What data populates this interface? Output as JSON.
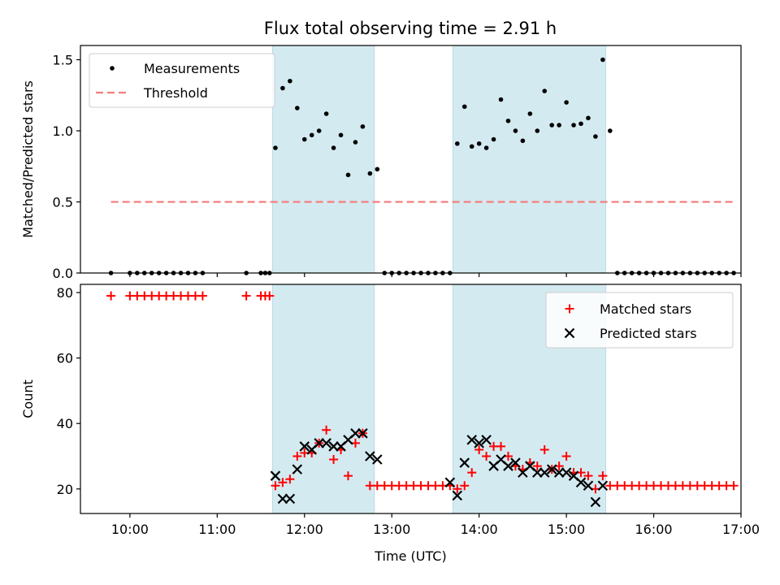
{
  "figure": {
    "title": "Flux total observing time = 2.91 h"
  },
  "chart_data": [
    {
      "type": "scatter",
      "ylabel": "Matched/Predicted stars",
      "xlabel": "",
      "xlim": [
        "09:26",
        "17:00"
      ],
      "ylim": [
        0,
        1.6
      ],
      "yticks": [
        0.0,
        0.5,
        1.0,
        1.5
      ],
      "grid": false,
      "legend_position": "top-left",
      "shaded_intervals": [
        [
          "11:38",
          "12:48"
        ],
        [
          "13:42",
          "15:27"
        ]
      ],
      "series": [
        {
          "name": "Measurements",
          "style": "dot",
          "color": "#000000",
          "points": [
            [
              "09:47",
              0.0
            ],
            [
              "10:00",
              0.0
            ],
            [
              "10:05",
              0.0
            ],
            [
              "10:10",
              0.0
            ],
            [
              "10:15",
              0.0
            ],
            [
              "10:20",
              0.0
            ],
            [
              "10:25",
              0.0
            ],
            [
              "10:30",
              0.0
            ],
            [
              "10:35",
              0.0
            ],
            [
              "10:40",
              0.0
            ],
            [
              "10:45",
              0.0
            ],
            [
              "10:50",
              0.0
            ],
            [
              "11:20",
              0.0
            ],
            [
              "11:30",
              0.0
            ],
            [
              "11:33",
              0.0
            ],
            [
              "11:36",
              0.0
            ],
            [
              "11:40",
              0.88
            ],
            [
              "11:45",
              1.3
            ],
            [
              "11:50",
              1.35
            ],
            [
              "11:55",
              1.16
            ],
            [
              "12:00",
              0.94
            ],
            [
              "12:05",
              0.97
            ],
            [
              "12:10",
              1.0
            ],
            [
              "12:15",
              1.12
            ],
            [
              "12:20",
              0.88
            ],
            [
              "12:25",
              0.97
            ],
            [
              "12:30",
              0.69
            ],
            [
              "12:35",
              0.92
            ],
            [
              "12:40",
              1.03
            ],
            [
              "12:45",
              0.7
            ],
            [
              "12:50",
              0.73
            ],
            [
              "12:55",
              0.0
            ],
            [
              "13:00",
              0.0
            ],
            [
              "13:05",
              0.0
            ],
            [
              "13:10",
              0.0
            ],
            [
              "13:15",
              0.0
            ],
            [
              "13:20",
              0.0
            ],
            [
              "13:25",
              0.0
            ],
            [
              "13:30",
              0.0
            ],
            [
              "13:35",
              0.0
            ],
            [
              "13:40",
              0.0
            ],
            [
              "13:45",
              0.91
            ],
            [
              "13:50",
              1.17
            ],
            [
              "13:55",
              0.89
            ],
            [
              "14:00",
              0.91
            ],
            [
              "14:05",
              0.88
            ],
            [
              "14:10",
              0.94
            ],
            [
              "14:15",
              1.22
            ],
            [
              "14:20",
              1.07
            ],
            [
              "14:25",
              1.0
            ],
            [
              "14:30",
              0.93
            ],
            [
              "14:35",
              1.12
            ],
            [
              "14:40",
              1.0
            ],
            [
              "14:45",
              1.28
            ],
            [
              "14:50",
              1.04
            ],
            [
              "14:55",
              1.04
            ],
            [
              "15:00",
              1.2
            ],
            [
              "15:05",
              1.04
            ],
            [
              "15:10",
              1.05
            ],
            [
              "15:15",
              1.09
            ],
            [
              "15:20",
              0.96
            ],
            [
              "15:25",
              1.5
            ],
            [
              "15:30",
              1.0
            ],
            [
              "15:35",
              0.0
            ],
            [
              "15:40",
              0.0
            ],
            [
              "15:45",
              0.0
            ],
            [
              "15:50",
              0.0
            ],
            [
              "15:55",
              0.0
            ],
            [
              "16:00",
              0.0
            ],
            [
              "16:05",
              0.0
            ],
            [
              "16:10",
              0.0
            ],
            [
              "16:15",
              0.0
            ],
            [
              "16:20",
              0.0
            ],
            [
              "16:25",
              0.0
            ],
            [
              "16:30",
              0.0
            ],
            [
              "16:35",
              0.0
            ],
            [
              "16:40",
              0.0
            ],
            [
              "16:45",
              0.0
            ],
            [
              "16:50",
              0.0
            ],
            [
              "16:55",
              0.0
            ]
          ]
        },
        {
          "name": "Threshold",
          "style": "dashed-line",
          "color": "#f47e7e",
          "points": [
            [
              "09:47",
              0.5
            ],
            [
              "16:55",
              0.5
            ]
          ]
        }
      ]
    },
    {
      "type": "scatter",
      "ylabel": "Count",
      "xlabel": "Time (UTC)",
      "xlim": [
        "09:26",
        "17:00"
      ],
      "ylim": [
        12.5,
        82.5
      ],
      "yticks": [
        20,
        40,
        60,
        80
      ],
      "xticks": [
        "10:00",
        "11:00",
        "12:00",
        "13:00",
        "14:00",
        "15:00",
        "16:00",
        "17:00"
      ],
      "grid": false,
      "legend_position": "top-right",
      "shaded_intervals": [
        [
          "11:38",
          "12:48"
        ],
        [
          "13:42",
          "15:27"
        ]
      ],
      "series": [
        {
          "name": "Matched stars",
          "marker": "plus",
          "color": "#ff0000",
          "points": [
            [
              "09:47",
              79
            ],
            [
              "10:00",
              79
            ],
            [
              "10:05",
              79
            ],
            [
              "10:10",
              79
            ],
            [
              "10:15",
              79
            ],
            [
              "10:20",
              79
            ],
            [
              "10:25",
              79
            ],
            [
              "10:30",
              79
            ],
            [
              "10:35",
              79
            ],
            [
              "10:40",
              79
            ],
            [
              "10:45",
              79
            ],
            [
              "10:50",
              79
            ],
            [
              "11:20",
              79
            ],
            [
              "11:30",
              79
            ],
            [
              "11:33",
              79
            ],
            [
              "11:36",
              79
            ],
            [
              "11:40",
              21
            ],
            [
              "11:45",
              22
            ],
            [
              "11:50",
              23
            ],
            [
              "11:55",
              30
            ],
            [
              "12:00",
              31
            ],
            [
              "12:05",
              31
            ],
            [
              "12:10",
              34
            ],
            [
              "12:15",
              38
            ],
            [
              "12:20",
              29
            ],
            [
              "12:25",
              32
            ],
            [
              "12:30",
              24
            ],
            [
              "12:35",
              34
            ],
            [
              "12:40",
              37
            ],
            [
              "12:45",
              21
            ],
            [
              "12:50",
              21
            ],
            [
              "12:55",
              21
            ],
            [
              "13:00",
              21
            ],
            [
              "13:05",
              21
            ],
            [
              "13:10",
              21
            ],
            [
              "13:15",
              21
            ],
            [
              "13:20",
              21
            ],
            [
              "13:25",
              21
            ],
            [
              "13:30",
              21
            ],
            [
              "13:35",
              21
            ],
            [
              "13:40",
              21
            ],
            [
              "13:45",
              20
            ],
            [
              "13:50",
              21
            ],
            [
              "13:55",
              25
            ],
            [
              "14:00",
              32
            ],
            [
              "14:05",
              30
            ],
            [
              "14:10",
              33
            ],
            [
              "14:15",
              33
            ],
            [
              "14:20",
              30
            ],
            [
              "14:25",
              27
            ],
            [
              "14:30",
              26
            ],
            [
              "14:35",
              28
            ],
            [
              "14:40",
              27
            ],
            [
              "14:45",
              32
            ],
            [
              "14:50",
              26
            ],
            [
              "14:55",
              27
            ],
            [
              "15:00",
              30
            ],
            [
              "15:05",
              25
            ],
            [
              "15:10",
              25
            ],
            [
              "15:15",
              24
            ],
            [
              "15:20",
              20
            ],
            [
              "15:25",
              24
            ],
            [
              "15:30",
              21
            ],
            [
              "15:35",
              21
            ],
            [
              "15:40",
              21
            ],
            [
              "15:45",
              21
            ],
            [
              "15:50",
              21
            ],
            [
              "15:55",
              21
            ],
            [
              "16:00",
              21
            ],
            [
              "16:05",
              21
            ],
            [
              "16:10",
              21
            ],
            [
              "16:15",
              21
            ],
            [
              "16:20",
              21
            ],
            [
              "16:25",
              21
            ],
            [
              "16:30",
              21
            ],
            [
              "16:35",
              21
            ],
            [
              "16:40",
              21
            ],
            [
              "16:45",
              21
            ],
            [
              "16:50",
              21
            ],
            [
              "16:55",
              21
            ]
          ]
        },
        {
          "name": "Predicted stars",
          "marker": "x",
          "color": "#000000",
          "points": [
            [
              "11:40",
              24
            ],
            [
              "11:45",
              17
            ],
            [
              "11:50",
              17
            ],
            [
              "11:55",
              26
            ],
            [
              "12:00",
              33
            ],
            [
              "12:05",
              32
            ],
            [
              "12:10",
              34
            ],
            [
              "12:15",
              34
            ],
            [
              "12:20",
              33
            ],
            [
              "12:25",
              33
            ],
            [
              "12:30",
              35
            ],
            [
              "12:35",
              37
            ],
            [
              "12:40",
              37
            ],
            [
              "12:45",
              30
            ],
            [
              "12:50",
              29
            ],
            [
              "13:40",
              22
            ],
            [
              "13:45",
              18
            ],
            [
              "13:50",
              28
            ],
            [
              "13:55",
              35
            ],
            [
              "14:00",
              34
            ],
            [
              "14:05",
              35
            ],
            [
              "14:10",
              27
            ],
            [
              "14:15",
              29
            ],
            [
              "14:20",
              27
            ],
            [
              "14:25",
              28
            ],
            [
              "14:30",
              25
            ],
            [
              "14:35",
              27
            ],
            [
              "14:40",
              25
            ],
            [
              "14:45",
              25
            ],
            [
              "14:50",
              26
            ],
            [
              "14:55",
              25
            ],
            [
              "15:00",
              25
            ],
            [
              "15:05",
              24
            ],
            [
              "15:10",
              22
            ],
            [
              "15:15",
              21
            ],
            [
              "15:20",
              16
            ],
            [
              "15:25",
              21
            ]
          ]
        }
      ]
    }
  ]
}
